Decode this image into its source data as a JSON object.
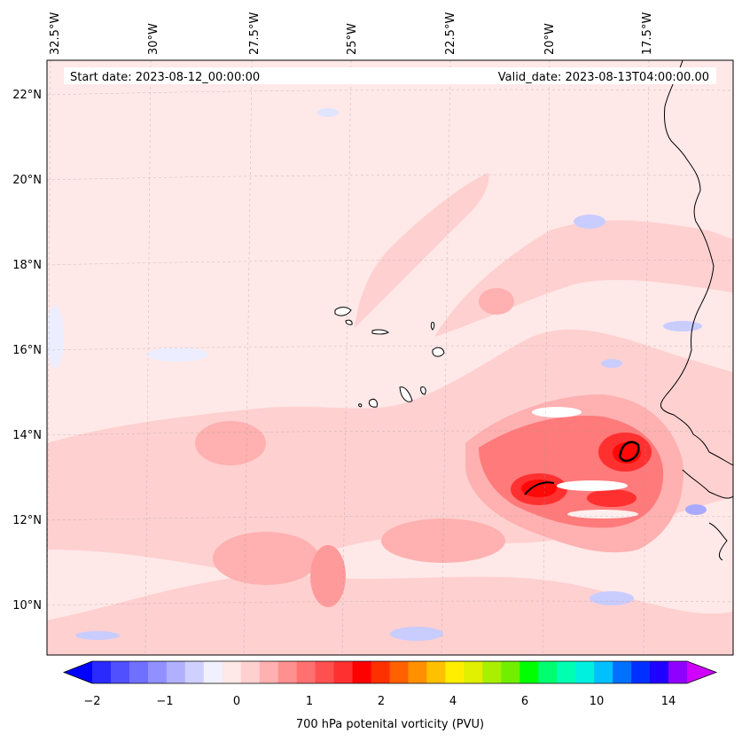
{
  "header": {
    "start_date": "Start date: 2023-08-12_00:00:00",
    "valid_date": "Valid_date: 2023-08-13T04:00:00.00"
  },
  "map": {
    "lon_labels": [
      "32.5°W",
      "30°W",
      "27.5°W",
      "25°W",
      "22.5°W",
      "20°W",
      "17.5°W"
    ],
    "lat_labels": [
      "22°N",
      "20°N",
      "18°N",
      "16°N",
      "14°N",
      "12°N",
      "10°N"
    ],
    "colors": {
      "bg": "#ffe8e8",
      "light_pink": "#ffd0d0",
      "pink": "#ffb0b0",
      "salmon": "#ff8080",
      "red": "#ff4040",
      "strong_red": "#ff1010",
      "light_blue": "#e8ecff",
      "blue": "#c8ccff",
      "mid_blue": "#a8aaff",
      "white": "#ffffff",
      "coast": "#000000"
    }
  },
  "colorbar": {
    "title": "700 hPa potenital vorticity (PVU)",
    "tick_labels": [
      "−2",
      "−1",
      "0",
      "1",
      "2",
      "4",
      "6",
      "10",
      "14"
    ],
    "colors": [
      "#0000ff",
      "#2a2aff",
      "#5050ff",
      "#7070ff",
      "#9090ff",
      "#b0b0ff",
      "#d0d0ff",
      "#f0f0ff",
      "#ffe8e8",
      "#ffd0d0",
      "#ffb0b0",
      "#ff9090",
      "#ff7070",
      "#ff5050",
      "#ff3030",
      "#ff0000",
      "#ff3000",
      "#ff6000",
      "#ff9000",
      "#ffc000",
      "#ffee00",
      "#e0f000",
      "#a8f000",
      "#70f000",
      "#00ff00",
      "#00ff70",
      "#00ffb0",
      "#00f0e0",
      "#00c0ff",
      "#0070ff",
      "#0030ff",
      "#2000ff",
      "#9000ff",
      "#d000ff"
    ]
  }
}
